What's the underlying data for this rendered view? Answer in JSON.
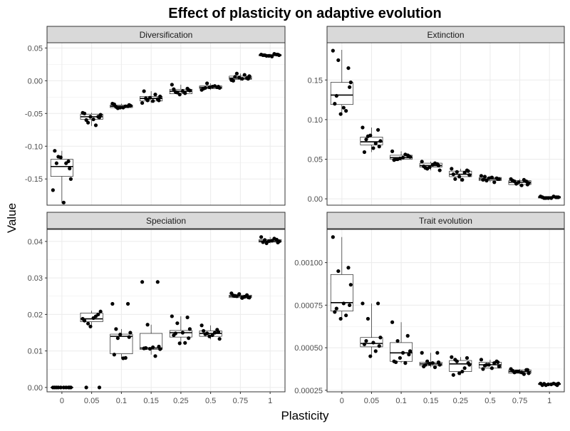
{
  "figure": {
    "title": "Effect of plasticity on adaptive evolution",
    "xlabel": "Plasticity",
    "ylabel": "Value"
  },
  "colors": {
    "strip_fill": "#d9d9d9",
    "grid": "#ebebeb",
    "border": "#333333",
    "box": "#000000",
    "point": "#000000"
  },
  "chart_data": [
    {
      "type": "box",
      "panel": "Diversification",
      "categories": [
        "0",
        "0.05",
        "0.1",
        "0.15",
        "0.25",
        "0.5",
        "0.75",
        "1"
      ],
      "ylim": [
        -0.19,
        0.058
      ],
      "yticks": [
        0.05,
        0.0,
        -0.05,
        -0.1,
        -0.15
      ],
      "ytick_labels": [
        "0.05",
        "0.00",
        "-0.05",
        "-0.10",
        "-0.15"
      ],
      "grid": true,
      "boxes": [
        {
          "q1": -0.146,
          "median": -0.131,
          "q3": -0.12,
          "low": -0.187,
          "high": -0.107
        },
        {
          "q1": -0.059,
          "median": -0.055,
          "q3": -0.051,
          "low": -0.069,
          "high": -0.049
        },
        {
          "q1": -0.041,
          "median": -0.039,
          "q3": -0.037,
          "low": -0.042,
          "high": -0.035
        },
        {
          "q1": -0.031,
          "median": -0.027,
          "q3": -0.024,
          "low": -0.034,
          "high": -0.016
        },
        {
          "q1": -0.02,
          "median": -0.016,
          "q3": -0.013,
          "low": -0.021,
          "high": -0.006
        },
        {
          "q1": -0.012,
          "median": -0.01,
          "q3": -0.008,
          "low": -0.014,
          "high": -0.004
        },
        {
          "q1": 0.002,
          "median": 0.004,
          "q3": 0.007,
          "low": 0.0,
          "high": 0.011
        },
        {
          "q1": 0.038,
          "median": 0.039,
          "q3": 0.04,
          "low": 0.037,
          "high": 0.041
        }
      ],
      "points": [
        [
          -0.167,
          -0.123,
          -0.116,
          -0.15,
          -0.186,
          -0.107,
          -0.126,
          -0.117,
          -0.134,
          -0.126
        ],
        [
          -0.049,
          -0.055,
          -0.064,
          -0.052,
          -0.059,
          -0.05,
          -0.068,
          -0.055,
          -0.056,
          -0.06
        ],
        [
          -0.035,
          -0.039,
          -0.042,
          -0.038,
          -0.041,
          -0.036,
          -0.039,
          -0.041,
          -0.037,
          -0.04
        ],
        [
          -0.034,
          -0.028,
          -0.03,
          -0.024,
          -0.031,
          -0.016,
          -0.021,
          -0.026,
          -0.03,
          -0.027
        ],
        [
          -0.006,
          -0.012,
          -0.018,
          -0.015,
          -0.016,
          -0.013,
          -0.019,
          -0.021,
          -0.014,
          -0.017
        ],
        [
          -0.014,
          -0.01,
          -0.004,
          -0.011,
          -0.009,
          -0.012,
          -0.008,
          -0.01,
          -0.009,
          -0.011
        ],
        [
          0.001,
          0.004,
          0.011,
          0.007,
          0.003,
          0.0,
          0.009,
          0.005,
          0.003,
          0.006
        ],
        [
          0.04,
          0.04,
          0.038,
          0.039,
          0.037,
          0.039,
          0.041,
          0.038,
          0.04,
          0.039
        ]
      ]
    },
    {
      "type": "box",
      "panel": "Extinction",
      "categories": [
        "0",
        "0.05",
        "0.1",
        "0.15",
        "0.25",
        "0.5",
        "0.75",
        "1"
      ],
      "ylim": [
        -0.008,
        0.197
      ],
      "yticks": [
        0.15,
        0.1,
        0.05,
        0.0
      ],
      "ytick_labels": [
        "0.15",
        "0.10",
        "0.05",
        "0.00"
      ],
      "grid": true,
      "boxes": [
        {
          "q1": 0.119,
          "median": 0.131,
          "q3": 0.147,
          "low": 0.106,
          "high": 0.188
        },
        {
          "q1": 0.068,
          "median": 0.072,
          "q3": 0.078,
          "low": 0.059,
          "high": 0.09
        },
        {
          "q1": 0.05,
          "median": 0.052,
          "q3": 0.055,
          "low": 0.048,
          "high": 0.06
        },
        {
          "q1": 0.04,
          "median": 0.042,
          "q3": 0.045,
          "low": 0.036,
          "high": 0.047
        },
        {
          "q1": 0.028,
          "median": 0.031,
          "q3": 0.035,
          "low": 0.022,
          "high": 0.038
        },
        {
          "q1": 0.023,
          "median": 0.025,
          "q3": 0.027,
          "low": 0.021,
          "high": 0.029
        },
        {
          "q1": 0.018,
          "median": 0.021,
          "q3": 0.023,
          "low": 0.016,
          "high": 0.025
        },
        {
          "q1": 0.001,
          "median": 0.002,
          "q3": 0.003,
          "low": 0.0,
          "high": 0.003
        }
      ],
      "points": [
        [
          0.187,
          0.165,
          0.175,
          0.147,
          0.115,
          0.12,
          0.111,
          0.107,
          0.141,
          0.13
        ],
        [
          0.09,
          0.087,
          0.079,
          0.073,
          0.064,
          0.059,
          0.07,
          0.08,
          0.066,
          0.075
        ],
        [
          0.06,
          0.055,
          0.05,
          0.053,
          0.052,
          0.049,
          0.056,
          0.051,
          0.054,
          0.05
        ],
        [
          0.047,
          0.044,
          0.038,
          0.036,
          0.043,
          0.041,
          0.045,
          0.04,
          0.042,
          0.039
        ],
        [
          0.038,
          0.036,
          0.034,
          0.03,
          0.024,
          0.031,
          0.033,
          0.028,
          0.035,
          0.025
        ],
        [
          0.029,
          0.026,
          0.023,
          0.025,
          0.027,
          0.024,
          0.021,
          0.026,
          0.025,
          0.028
        ],
        [
          0.025,
          0.022,
          0.019,
          0.02,
          0.017,
          0.023,
          0.024,
          0.021,
          0.018,
          0.022
        ],
        [
          0.003,
          0.002,
          0.001,
          0.002,
          0.001,
          0.002,
          0.003,
          0.001,
          0.002,
          0.001
        ]
      ]
    },
    {
      "type": "box",
      "panel": "Speciation",
      "categories": [
        "0",
        "0.05",
        "0.1",
        "0.15",
        "0.25",
        "0.5",
        "0.75",
        "1"
      ],
      "ylim": [
        -0.0012,
        0.0433
      ],
      "yticks": [
        0.04,
        0.03,
        0.02,
        0.01,
        0.0
      ],
      "ytick_labels": [
        "0.04",
        "0.03",
        "0.02",
        "0.01",
        "0.00"
      ],
      "grid": true,
      "boxes": [
        {
          "q1": 0.0,
          "median": 0.0,
          "q3": 0.0,
          "low": 0.0,
          "high": 0.0
        },
        {
          "q1": 0.018,
          "median": 0.0188,
          "q3": 0.0204,
          "low": 0.017,
          "high": 0.021
        },
        {
          "q1": 0.0092,
          "median": 0.014,
          "q3": 0.0146,
          "low": 0.008,
          "high": 0.016
        },
        {
          "q1": 0.0104,
          "median": 0.0108,
          "q3": 0.0148,
          "low": 0.009,
          "high": 0.0172
        },
        {
          "q1": 0.0138,
          "median": 0.015,
          "q3": 0.0156,
          "low": 0.0121,
          "high": 0.0195
        },
        {
          "q1": 0.014,
          "median": 0.0148,
          "q3": 0.0155,
          "low": 0.0132,
          "high": 0.017
        },
        {
          "q1": 0.0246,
          "median": 0.025,
          "q3": 0.0253,
          "low": 0.0243,
          "high": 0.0258
        },
        {
          "q1": 0.0398,
          "median": 0.0401,
          "q3": 0.0405,
          "low": 0.0395,
          "high": 0.0412
        }
      ],
      "points": [
        [
          0.0,
          0.0,
          0.0,
          0.0,
          0.0,
          0.0,
          0.0,
          0.0,
          0.0,
          0.0
        ],
        [
          0.0188,
          0.02,
          0.0175,
          0.0208,
          0.019,
          0.0183,
          0.0195,
          0.0167,
          0.0,
          0.0
        ],
        [
          0.0229,
          0.0229,
          0.0135,
          0.015,
          0.008,
          0.009,
          0.0081,
          0.0145,
          0.0138,
          0.016
        ],
        [
          0.0289,
          0.0289,
          0.0172,
          0.0105,
          0.011,
          0.0107,
          0.0086,
          0.0106,
          0.0112,
          0.0108
        ],
        [
          0.0195,
          0.0192,
          0.0176,
          0.016,
          0.015,
          0.0143,
          0.0122,
          0.0121,
          0.0135,
          0.0148
        ],
        [
          0.017,
          0.0158,
          0.0148,
          0.0133,
          0.0143,
          0.0155,
          0.015,
          0.014,
          0.0152,
          0.0146
        ],
        [
          0.0258,
          0.0253,
          0.025,
          0.0246,
          0.0245,
          0.0252,
          0.0248,
          0.0256,
          0.0247,
          0.0251
        ],
        [
          0.0412,
          0.0405,
          0.0395,
          0.04,
          0.0402,
          0.0398,
          0.0408,
          0.0401,
          0.0397,
          0.0404
        ]
      ]
    },
    {
      "type": "box",
      "panel": "Trait evolution",
      "categories": [
        "0",
        "0.05",
        "0.1",
        "0.15",
        "0.25",
        "0.5",
        "0.75",
        "1"
      ],
      "ylim": [
        0.000241,
        0.001195
      ],
      "yticks": [
        0.001,
        0.00075,
        0.0005,
        0.00025
      ],
      "ytick_labels": [
        "0.00100",
        "0.00075",
        "0.00050",
        "0.00025"
      ],
      "grid": true,
      "boxes": [
        {
          "q1": 0.000715,
          "median": 0.000765,
          "q3": 0.00093,
          "low": 0.00067,
          "high": 0.00115
        },
        {
          "q1": 0.000505,
          "median": 0.000525,
          "q3": 0.00056,
          "low": 0.000445,
          "high": 0.00076
        },
        {
          "q1": 0.00042,
          "median": 0.00047,
          "q3": 0.00053,
          "low": 0.00041,
          "high": 0.00065
        },
        {
          "q1": 0.000395,
          "median": 0.000405,
          "q3": 0.000415,
          "low": 0.000385,
          "high": 0.00047
        },
        {
          "q1": 0.00036,
          "median": 0.000405,
          "q3": 0.000425,
          "low": 0.00034,
          "high": 0.000445
        },
        {
          "q1": 0.00038,
          "median": 0.0004,
          "q3": 0.000415,
          "low": 0.000375,
          "high": 0.00043
        },
        {
          "q1": 0.00035,
          "median": 0.00036,
          "q3": 0.00037,
          "low": 0.000345,
          "high": 0.000375
        },
        {
          "q1": 0.000285,
          "median": 0.000285,
          "q3": 0.00029,
          "low": 0.00028,
          "high": 0.00029
        }
      ],
      "points": [
        [
          0.00115,
          0.00097,
          0.00095,
          0.00087,
          0.00076,
          0.00071,
          0.00069,
          0.00067,
          0.00075,
          0.00073
        ],
        [
          0.00076,
          0.00076,
          0.00067,
          0.00056,
          0.00053,
          0.00052,
          0.00048,
          0.00045,
          0.00051,
          0.00054
        ],
        [
          0.00065,
          0.00057,
          0.00054,
          0.00048,
          0.00047,
          0.00042,
          0.00041,
          0.00044,
          0.00046,
          0.000415
        ],
        [
          0.00047,
          0.00047,
          0.00042,
          0.0004,
          0.00041,
          0.00039,
          0.000385,
          0.000405,
          0.000415,
          0.0004
        ],
        [
          0.000445,
          0.00044,
          0.00042,
          0.0004,
          0.00036,
          0.00034,
          0.00038,
          0.00035,
          0.00041,
          0.00043
        ],
        [
          0.00043,
          0.00042,
          0.0004,
          0.00039,
          0.00038,
          0.000375,
          0.00041,
          0.0004,
          0.000415,
          0.000395
        ],
        [
          0.000375,
          0.00037,
          0.00036,
          0.00035,
          0.000355,
          0.000365,
          0.000345,
          0.00036,
          0.00037,
          0.000355
        ],
        [
          0.00029,
          0.000285,
          0.00028,
          0.00029,
          0.000285,
          0.00028,
          0.00029,
          0.000285,
          0.00028,
          0.000288
        ]
      ]
    }
  ]
}
